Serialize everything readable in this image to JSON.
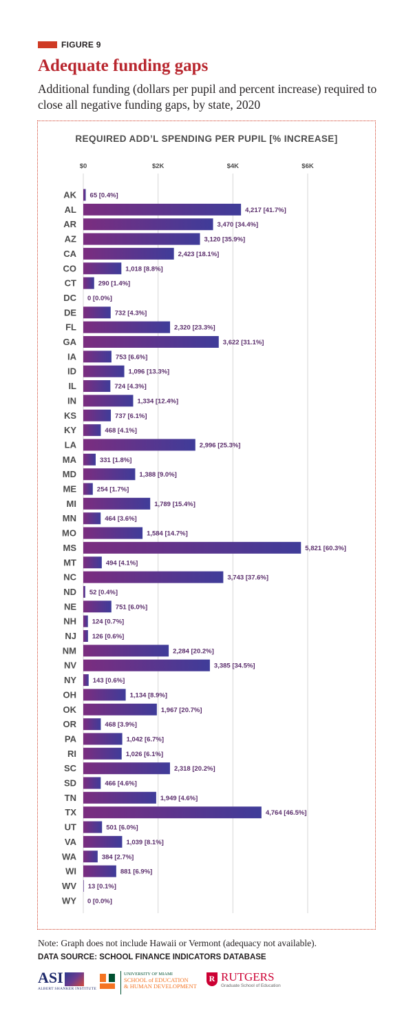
{
  "figure_label": "FIGURE 9",
  "title": "Adequate funding gaps",
  "subtitle": "Additional funding (dollars per pupil and percent increase) required to close all negative funding gaps, by state, 2020",
  "note": "Note: Graph does not include Hawaii or Vermont (adequacy not available).",
  "source": "DATA SOURCE: SCHOOL FINANCE INDICATORS DATABASE",
  "logos": {
    "asi_mark": "ASI",
    "asi_name": "ALBERT SHANKER INSTITUTE",
    "um_line1": "UNIVERSITY OF MIAMI",
    "um_line2": "SCHOOL of EDUCATION",
    "um_line3": "& HUMAN DEVELOPMENT",
    "ru_shield": "R",
    "ru_name": "RUTGERS",
    "ru_sub": "Graduate School of Education"
  },
  "colors": {
    "accent": "#cf3b25",
    "title": "#b8262e",
    "bar_start": "#7b2d7f",
    "bar_end": "#3f3c99",
    "value_label": "#5a2d6b",
    "state_label": "#4a4a4a"
  },
  "chart_data": {
    "type": "bar",
    "orientation": "horizontal",
    "title": "REQUIRED ADD’L SPENDING PER PUPIL [% INCREASE]",
    "xlim": [
      0,
      6000
    ],
    "xticks": [
      0,
      2000,
      4000,
      6000
    ],
    "xtick_labels": [
      "$0",
      "$2K",
      "$4K",
      "$6K"
    ],
    "grid": true,
    "categories": [
      "AK",
      "AL",
      "AR",
      "AZ",
      "CA",
      "CO",
      "CT",
      "DC",
      "DE",
      "FL",
      "GA",
      "IA",
      "ID",
      "IL",
      "IN",
      "KS",
      "KY",
      "LA",
      "MA",
      "MD",
      "ME",
      "MI",
      "MN",
      "MO",
      "MS",
      "MT",
      "NC",
      "ND",
      "NE",
      "NH",
      "NJ",
      "NM",
      "NV",
      "NY",
      "OH",
      "OK",
      "OR",
      "PA",
      "RI",
      "SC",
      "SD",
      "TN",
      "TX",
      "UT",
      "VA",
      "WA",
      "WI",
      "WV",
      "WY"
    ],
    "values": [
      65,
      4217,
      3470,
      3120,
      2423,
      1018,
      290,
      0,
      732,
      2320,
      3622,
      753,
      1096,
      724,
      1334,
      737,
      468,
      2996,
      331,
      1388,
      254,
      1789,
      464,
      1584,
      5821,
      494,
      3743,
      52,
      751,
      124,
      126,
      2284,
      3385,
      143,
      1134,
      1967,
      468,
      1042,
      1026,
      2318,
      466,
      1949,
      4764,
      501,
      1039,
      384,
      881,
      13,
      0
    ],
    "labels": [
      "65 [0.4%]",
      "4,217 [41.7%]",
      "3,470 [34.4%]",
      "3,120 [35.9%]",
      "2,423 [18.1%]",
      "1,018 [8.8%]",
      "290 [1.4%]",
      "0 [0.0%]",
      "732 [4.3%]",
      "2,320 [23.3%]",
      "3,622 [31.1%]",
      "753 [6.6%]",
      "1,096 [13.3%]",
      "724 [4.3%]",
      "1,334 [12.4%]",
      "737 [6.1%]",
      "468 [4.1%]",
      "2,996 [25.3%]",
      "331 [1.8%]",
      "1,388 [9.0%]",
      "254 [1.7%]",
      "1,789 [15.4%]",
      "464 [3.6%]",
      "1,584 [14.7%]",
      "5,821 [60.3%]",
      "494 [4.1%]",
      "3,743 [37.6%]",
      "52 [0.4%]",
      "751 [6.0%]",
      "124 [0.7%]",
      "126 [0.6%]",
      "2,284 [20.2%]",
      "3,385 [34.5%]",
      "143 [0.6%]",
      "1,134 [8.9%]",
      "1,967 [20.7%]",
      "468 [3.9%]",
      "1,042 [6.7%]",
      "1,026 [6.1%]",
      "2,318 [20.2%]",
      "466 [4.6%]",
      "1,949 [4.6%]",
      "4,764 [46.5%]",
      "501 [6.0%]",
      "1,039 [8.1%]",
      "384 [2.7%]",
      "881 [6.9%]",
      "13 [0.1%]",
      "0 [0.0%]"
    ]
  }
}
